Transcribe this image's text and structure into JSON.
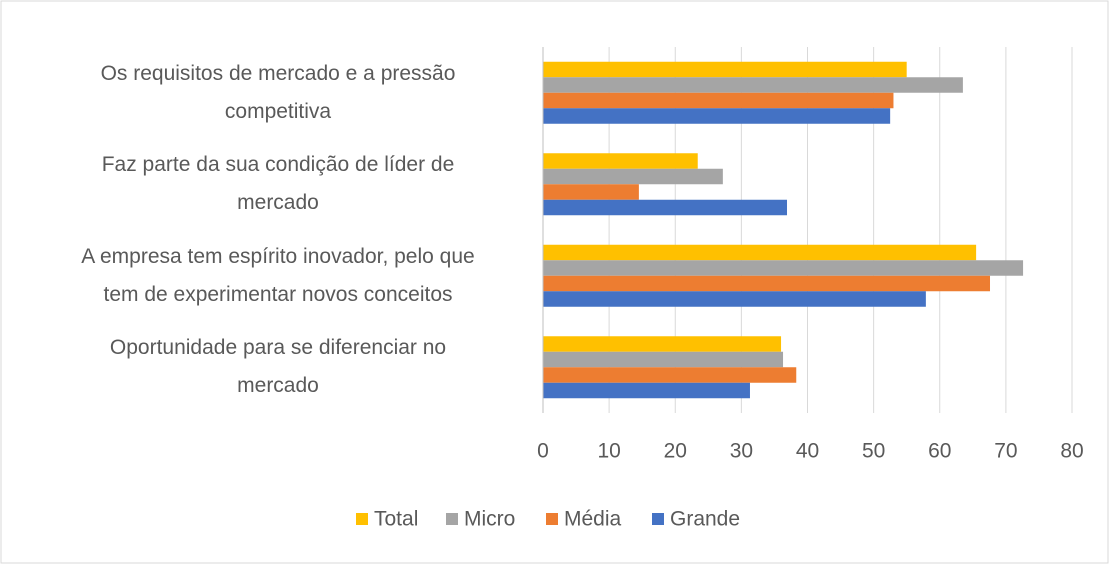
{
  "chart_data": {
    "type": "bar",
    "orientation": "horizontal",
    "categories": [
      "Os requisitos de mercado e a pressão\ncompetitiva",
      "Faz parte da sua condição de líder de\nmercado",
      "A empresa tem espírito inovador, pelo que\ntem de experimentar novos conceitos",
      "Oportunidade para se diferenciar no\nmercado"
    ],
    "series": [
      {
        "name": "Total",
        "color": "#ffc000",
        "values": [
          55,
          23.4,
          65.5,
          36
        ]
      },
      {
        "name": "Micro",
        "color": "#a5a5a5",
        "values": [
          63.5,
          27.2,
          72.6,
          36.3
        ]
      },
      {
        "name": "Média",
        "color": "#ed7d31",
        "values": [
          53,
          14.5,
          67.6,
          38.3
        ]
      },
      {
        "name": "Grande",
        "color": "#4472c4",
        "values": [
          52.5,
          36.9,
          57.9,
          31.3
        ]
      }
    ],
    "xlim": [
      0,
      80
    ],
    "xticks": [
      0,
      10,
      20,
      30,
      40,
      50,
      60,
      70,
      80
    ],
    "grid": true,
    "legend": "bottom"
  }
}
